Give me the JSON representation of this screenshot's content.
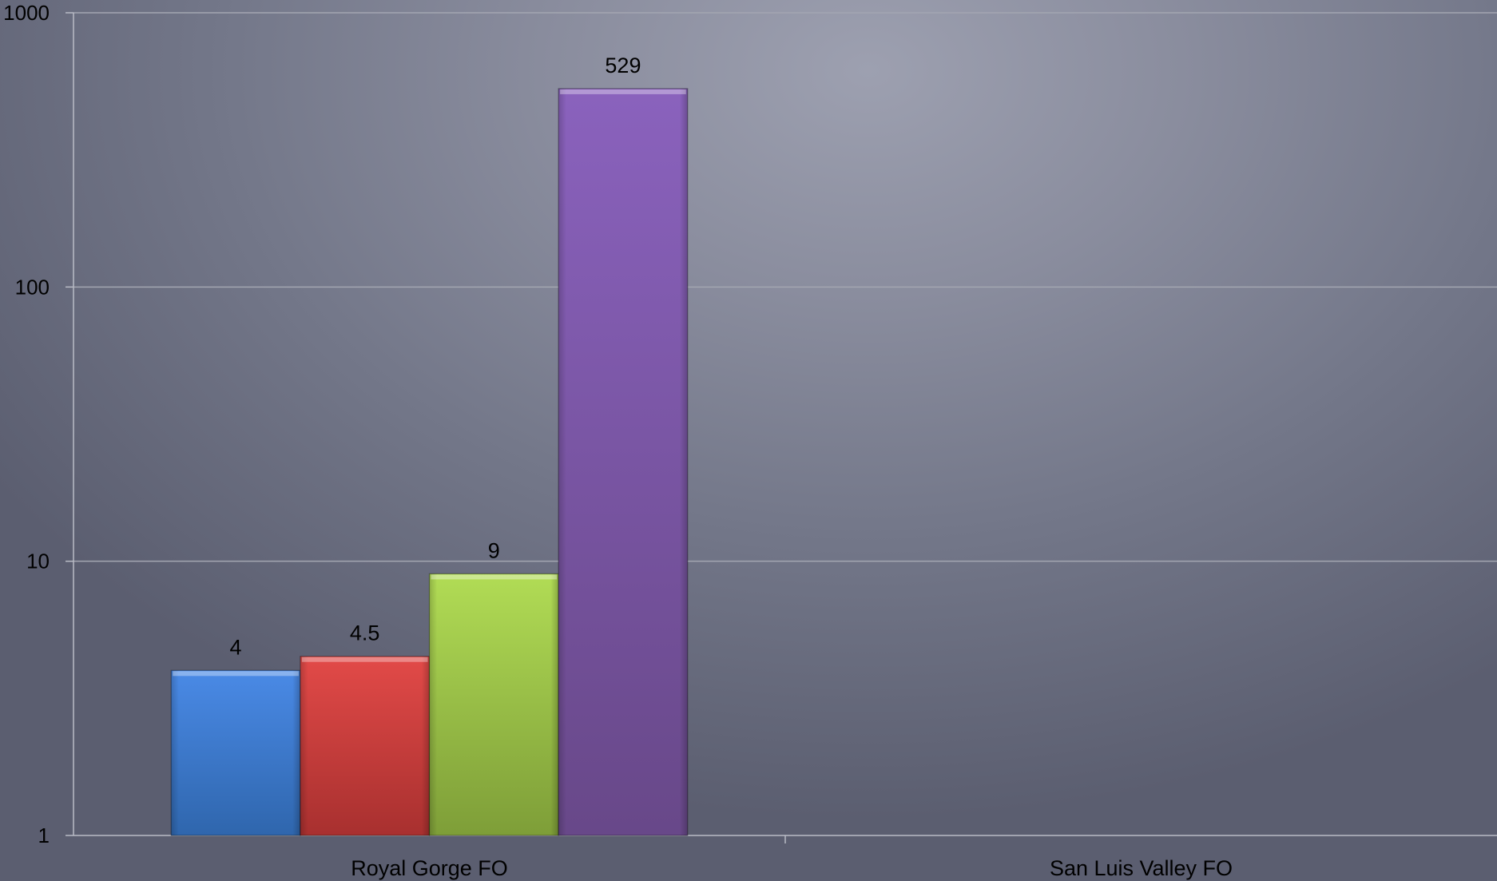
{
  "chart_data": {
    "type": "bar",
    "title": "",
    "xlabel": "",
    "ylabel": "",
    "yscale": "log",
    "ylim": [
      1,
      1000
    ],
    "yticks": [
      "1",
      "10",
      "100",
      "1000"
    ],
    "grid": true,
    "legend": "none",
    "categories": [
      "Royal Gorge FO",
      "San Luis Valley FO"
    ],
    "series": [
      {
        "color": "#3a7bd5",
        "values": [
          4,
          null
        ],
        "labels": [
          "4",
          ""
        ]
      },
      {
        "color": "#d23c3c",
        "values": [
          4.5,
          null
        ],
        "labels": [
          "4.5",
          ""
        ]
      },
      {
        "color": "#98c23e",
        "values": [
          9,
          null
        ],
        "labels": [
          "9",
          ""
        ]
      },
      {
        "color": "#7a55a6",
        "values": [
          529,
          null
        ],
        "labels": [
          "529",
          ""
        ]
      }
    ]
  }
}
